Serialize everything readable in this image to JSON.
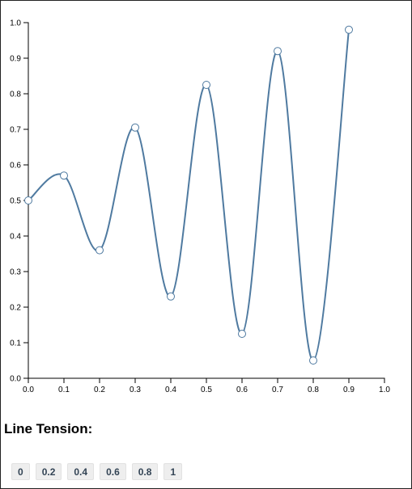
{
  "chart_data": {
    "type": "line",
    "title": "",
    "xlabel": "",
    "ylabel": "",
    "xlim": [
      0,
      1
    ],
    "ylim": [
      0,
      1
    ],
    "x_ticks": [
      "0.0",
      "0.1",
      "0.2",
      "0.3",
      "0.4",
      "0.5",
      "0.6",
      "0.7",
      "0.8",
      "0.9",
      "1.0"
    ],
    "y_ticks": [
      "0.0",
      "0.1",
      "0.2",
      "0.3",
      "0.4",
      "0.5",
      "0.6",
      "0.7",
      "0.8",
      "0.9",
      "1.0"
    ],
    "grid": false,
    "interpolation": "cardinal",
    "series": [
      {
        "x": [
          0.0,
          0.1,
          0.2,
          0.3,
          0.4,
          0.5,
          0.6,
          0.7,
          0.8,
          0.9
        ],
        "y": [
          0.5,
          0.57,
          0.36,
          0.705,
          0.23,
          0.825,
          0.125,
          0.92,
          0.05,
          0.98
        ]
      }
    ],
    "colors": {
      "line": "#4f7aa0",
      "point_fill": "#ffffff",
      "point_stroke": "#4f7aa0"
    }
  },
  "controls": {
    "heading": "Line Tension:",
    "buttons": [
      "0",
      "0.2",
      "0.4",
      "0.6",
      "0.8",
      "1"
    ]
  }
}
